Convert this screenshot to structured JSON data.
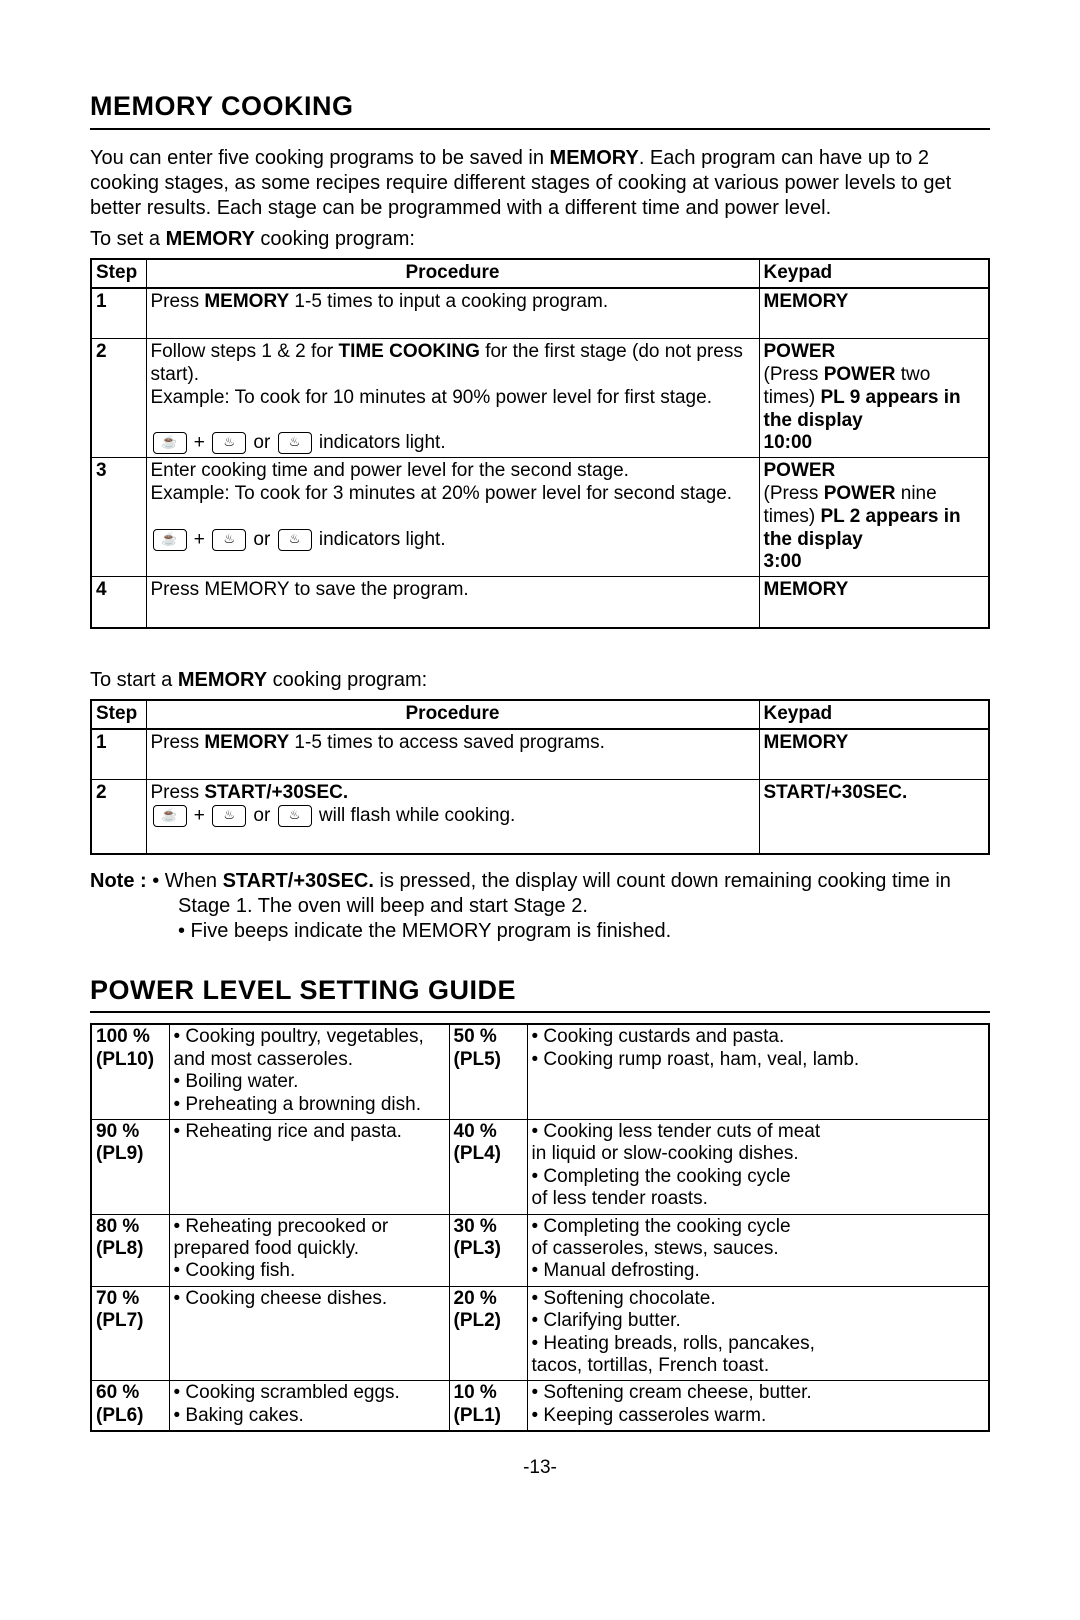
{
  "section1": {
    "title": "MEMORY COOKING",
    "intro_line1": "You can enter five cooking programs to be saved in ",
    "intro_bold1": "MEMORY",
    "intro_line2": ".  Each program can have up to 2 cooking stages, as some recipes require different stages of cooking at various power levels to get better results.  Each stage can be programmed with a different time and power level.",
    "toset_pre": "To set a ",
    "toset_bold": "MEMORY",
    "toset_post": " cooking program:",
    "headers": {
      "step": "Step",
      "procedure": "Procedure",
      "keypad": "Keypad"
    },
    "rows_set": [
      {
        "step": "1",
        "procedure_pre": "Press ",
        "procedure_bold": "MEMORY",
        "procedure_post": " 1-5 times to input a cooking program.",
        "keypad_bold": "MEMORY"
      },
      {
        "step": "2",
        "pr1_pre": "Follow steps 1 & 2 for ",
        "pr1_bold": "TIME COOKING",
        "pr1_post": " for the first stage (do not press start).",
        "pr2": "Example: To cook for 10 minutes at 90% power level for first stage.",
        "pr3_post": "   indicators light.",
        "kp_bold1": "POWER",
        "kp_line2a": "(Press ",
        "kp_line2b": "POWER",
        "kp_line2c": " two times) ",
        "kp_line2d": "PL 9 appears in the display",
        "kp_line3": "10:00"
      },
      {
        "step": "3",
        "pr1": "Enter cooking time and power level for the second stage.",
        "pr2": "Example: To cook for 3 minutes at 20% power level for second stage.",
        "pr3_post": "   indicators light.",
        "kp_bold1": "POWER",
        "kp_line2a": "(Press ",
        "kp_line2b": "POWER",
        "kp_line2c": " nine times) ",
        "kp_line2d": "PL 2 appears in the display",
        "kp_line3": "3:00"
      },
      {
        "step": "4",
        "procedure": "Press MEMORY to save the program.",
        "keypad_bold": "MEMORY"
      }
    ],
    "tostart_pre": "To start a ",
    "tostart_bold": "MEMORY",
    "tostart_post": " cooking program:",
    "rows_start": [
      {
        "step": "1",
        "procedure_pre": "Press ",
        "procedure_bold": "MEMORY",
        "procedure_post": " 1-5 times to access saved programs.",
        "keypad_bold": "MEMORY"
      },
      {
        "step": "2",
        "pr1_pre": "Press ",
        "pr1_bold": "START/+30SEC.",
        "pr2_post": " will flash while cooking.",
        "keypad_bold": "START/+30SEC."
      }
    ],
    "note_label": "Note :  ",
    "note1_pre": "• When ",
    "note1_bold": "START/+30SEC.",
    "note1_post": " is pressed, the display will count down remaining cooking time in Stage 1.  The oven will beep and start Stage 2.",
    "note2": "• Five beeps indicate the MEMORY program is finished."
  },
  "section2": {
    "title": "POWER LEVEL SETTING GUIDE",
    "rows": [
      {
        "left_level1": "100 %",
        "left_level2": "(PL10)",
        "left_desc": "• Cooking poultry, vegetables,\n  and most casseroles.\n• Boiling water.\n• Preheating a browning dish.",
        "right_level1": "50 %",
        "right_level2": "(PL5)",
        "right_desc": "• Cooking custards and pasta.\n• Cooking rump roast, ham, veal, lamb."
      },
      {
        "left_level1": "90 %",
        "left_level2": "(PL9)",
        "left_desc": "• Reheating rice and pasta.",
        "right_level1": "40 %",
        "right_level2": "(PL4)",
        "right_desc": "• Cooking less tender cuts of meat\n  in liquid or slow-cooking dishes.\n• Completing the cooking cycle\n  of less tender roasts."
      },
      {
        "left_level1": "80 %",
        "left_level2": "(PL8)",
        "left_desc": "• Reheating precooked or\n  prepared food quickly.\n• Cooking fish.",
        "right_level1": "30 %",
        "right_level2": "(PL3)",
        "right_desc": "• Completing the cooking cycle\n  of casseroles, stews, sauces.\n• Manual defrosting."
      },
      {
        "left_level1": "70 %",
        "left_level2": "(PL7)",
        "left_desc": "• Cooking cheese dishes.",
        "right_level1": "20 %",
        "right_level2": "(PL2)",
        "right_desc": "• Softening chocolate.\n• Clarifying butter.\n• Heating breads, rolls, pancakes,\n  tacos, tortillas, French toast."
      },
      {
        "left_level1": "60 %",
        "left_level2": "(PL6)",
        "left_desc": "• Cooking scrambled eggs.\n• Baking cakes.",
        "right_level1": "10 %",
        "right_level2": "(PL1)",
        "right_desc": "• Softening cream cheese, butter.\n• Keeping casseroles warm."
      }
    ]
  },
  "page_number": "-13-"
}
